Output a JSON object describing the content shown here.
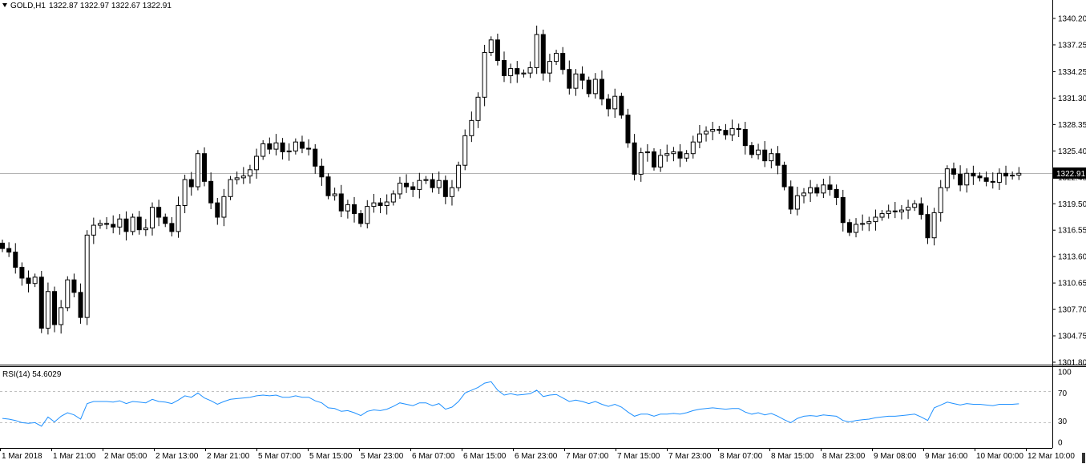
{
  "header": {
    "symbol": "GOLD,H1",
    "ohlc": "1322.87 1322.97 1322.67 1322.91"
  },
  "price_tag": "1322.91",
  "price_axis": [
    "1340.20",
    "1337.25",
    "1334.25",
    "1331.30",
    "1328.35",
    "1325.40",
    "1322.45",
    "1319.50",
    "1316.55",
    "1313.60",
    "1310.65",
    "1307.70",
    "1304.75",
    "1301.80"
  ],
  "rsi": {
    "label": "RSI(14) 54.6029",
    "levels": [
      "100",
      "70",
      "30",
      "0"
    ]
  },
  "time_axis": [
    "1 Mar 2018",
    "1 Mar 21:00",
    "2 Mar 05:00",
    "2 Mar 13:00",
    "2 Mar 21:00",
    "5 Mar 07:00",
    "5 Mar 15:00",
    "5 Mar 23:00",
    "6 Mar 07:00",
    "6 Mar 15:00",
    "6 Mar 23:00",
    "7 Mar 07:00",
    "7 Mar 15:00",
    "7 Mar 23:00",
    "8 Mar 07:00",
    "8 Mar 15:00",
    "8 Mar 23:00",
    "9 Mar 08:00",
    "9 Mar 16:00",
    "10 Mar 00:00",
    "12 Mar 10:00"
  ],
  "colors": {
    "background": "#ffffff",
    "up_fill": "#ffffff",
    "down_fill": "#000000",
    "candle_outline": "#000000",
    "rsi_line": "#1e90ff",
    "grid_dash": "#c0c0c0"
  },
  "chart_data": [
    {
      "type": "candlestick",
      "symbol": "GOLD,H1",
      "ylim": [
        1301.8,
        1341.0
      ],
      "closes": [
        1314.5,
        1314.1,
        1312.4,
        1311.2,
        1310.6,
        1311.3,
        1305.6,
        1309.7,
        1306.0,
        1307.9,
        1311.0,
        1309.6,
        1306.8,
        1316.0,
        1317.1,
        1317.3,
        1317.2,
        1316.9,
        1317.8,
        1316.4,
        1318.0,
        1316.6,
        1316.8,
        1319.1,
        1318.0,
        1317.3,
        1316.4,
        1319.3,
        1322.2,
        1321.4,
        1325.1,
        1322.0,
        1319.6,
        1318.0,
        1320.3,
        1322.2,
        1322.4,
        1322.6,
        1323.3,
        1324.8,
        1326.2,
        1325.6,
        1326.3,
        1325.3,
        1325.4,
        1326.4,
        1325.7,
        1325.6,
        1323.7,
        1322.5,
        1320.4,
        1320.6,
        1318.7,
        1319.4,
        1318.4,
        1317.3,
        1319.2,
        1319.6,
        1319.3,
        1319.7,
        1320.6,
        1321.8,
        1321.4,
        1321.1,
        1322.1,
        1322.2,
        1321.3,
        1322.1,
        1320.3,
        1321.3,
        1323.8,
        1327.1,
        1328.8,
        1331.4,
        1336.4,
        1337.8,
        1335.5,
        1333.8,
        1334.6,
        1334.0,
        1334.1,
        1334.7,
        1338.4,
        1334.1,
        1335.4,
        1336.3,
        1334.5,
        1332.4,
        1334.0,
        1333.3,
        1331.8,
        1333.4,
        1331.2,
        1330.1,
        1331.5,
        1329.4,
        1326.3,
        1322.8,
        1325.2,
        1325.3,
        1323.6,
        1324.9,
        1325.1,
        1325.3,
        1324.6,
        1325.1,
        1326.4,
        1327.3,
        1327.6,
        1327.8,
        1327.7,
        1327.2,
        1327.9,
        1327.8,
        1326.0,
        1325.0,
        1325.5,
        1324.3,
        1325.1,
        1323.8,
        1321.4,
        1318.9,
        1320.4,
        1320.7,
        1321.3,
        1320.7,
        1321.6,
        1321.1,
        1320.2,
        1317.4,
        1316.3,
        1317.2,
        1317.3,
        1317.5,
        1318.0,
        1318.4,
        1318.7,
        1318.6,
        1318.8,
        1319.1,
        1319.5,
        1318.3,
        1315.7,
        1318.5,
        1321.3,
        1323.4,
        1322.8,
        1321.6,
        1322.9,
        1322.6,
        1322.4,
        1322.0,
        1321.9,
        1322.9,
        1322.6,
        1322.7,
        1322.9
      ],
      "price_axis_range": [
        1301.8,
        1340.2
      ]
    },
    {
      "type": "line",
      "name": "RSI(14)",
      "value": 54.6029,
      "ylim": [
        0,
        100
      ],
      "levels": [
        70,
        30
      ],
      "values": [
        34,
        33,
        31,
        28,
        27,
        28,
        23,
        36,
        29,
        37,
        42,
        39,
        33,
        55,
        58,
        58,
        58,
        57,
        59,
        55,
        58,
        57,
        56,
        61,
        58,
        57,
        55,
        60,
        66,
        64,
        70,
        63,
        59,
        54,
        58,
        61,
        62,
        63,
        64,
        66,
        67,
        66,
        67,
        64,
        64,
        66,
        64,
        64,
        59,
        56,
        49,
        48,
        44,
        45,
        42,
        38,
        44,
        46,
        45,
        47,
        51,
        56,
        54,
        52,
        56,
        56,
        52,
        55,
        47,
        50,
        58,
        70,
        74,
        78,
        84,
        86,
        74,
        67,
        69,
        67,
        68,
        69,
        74,
        65,
        67,
        68,
        63,
        58,
        60,
        58,
        55,
        58,
        54,
        51,
        54,
        50,
        43,
        37,
        40,
        40,
        37,
        40,
        40,
        41,
        40,
        42,
        45,
        47,
        48,
        49,
        48,
        47,
        48,
        48,
        43,
        40,
        42,
        39,
        41,
        37,
        32,
        28,
        34,
        37,
        38,
        37,
        39,
        38,
        37,
        31,
        29,
        31,
        32,
        33,
        35,
        36,
        37,
        37,
        38,
        39,
        40,
        36,
        31,
        49,
        53,
        57,
        55,
        53,
        55,
        54,
        54,
        53,
        52,
        54,
        54,
        54,
        54.6029
      ]
    }
  ]
}
